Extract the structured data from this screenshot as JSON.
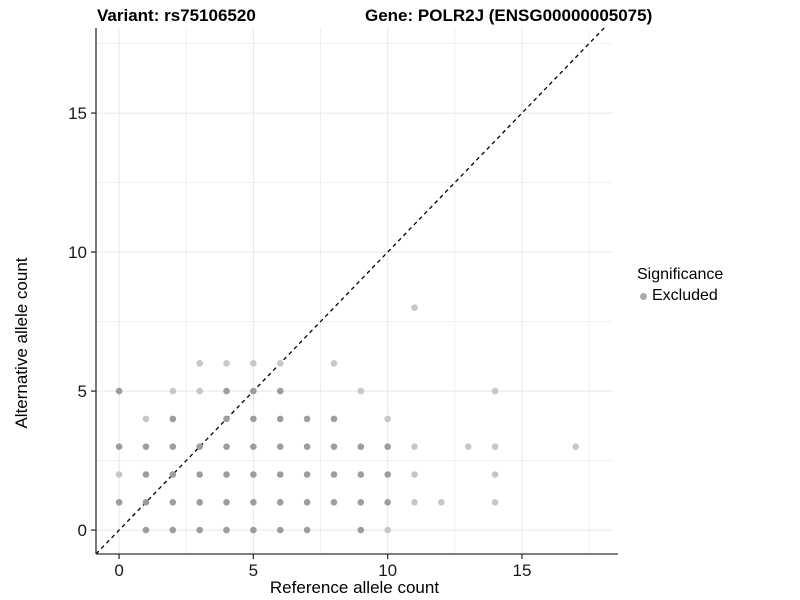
{
  "chart_data": {
    "type": "scatter",
    "title_left": "Variant: rs75106520",
    "title_right": "Gene: POLR2J (ENSG00000005075)",
    "xlabel": "Reference allele count",
    "ylabel": "Alternative allele count",
    "xlim": [
      -0.86,
      18.39
    ],
    "ylim": [
      -0.86,
      18.06
    ],
    "x_ticks": [
      0,
      5,
      10,
      15
    ],
    "y_ticks": [
      0,
      5,
      10,
      15
    ],
    "x_minor_ticks": [
      2.5,
      7.5,
      12.5,
      17.5
    ],
    "y_minor_ticks": [
      2.5,
      7.5,
      12.5,
      17.5
    ],
    "grid": "major+minor",
    "reference_line": "y = x, black dashed",
    "legend": {
      "title": "Significance",
      "position": "right",
      "entries": [
        {
          "label": "Excluded",
          "color": "#ababab"
        }
      ]
    },
    "series": [
      {
        "name": "Excluded",
        "marker": "circle",
        "points": [
          [
            1,
            0,
            "m"
          ],
          [
            2,
            0,
            "m"
          ],
          [
            3,
            0,
            "m"
          ],
          [
            4,
            0,
            "m"
          ],
          [
            5,
            0,
            "m"
          ],
          [
            6,
            0,
            "m"
          ],
          [
            7,
            0,
            "m"
          ],
          [
            9,
            0,
            "m"
          ],
          [
            10,
            0,
            "l"
          ],
          [
            0,
            1,
            "m"
          ],
          [
            1,
            1,
            "m"
          ],
          [
            2,
            1,
            "m"
          ],
          [
            3,
            1,
            "m"
          ],
          [
            4,
            1,
            "m"
          ],
          [
            5,
            1,
            "m"
          ],
          [
            6,
            1,
            "m"
          ],
          [
            7,
            1,
            "m"
          ],
          [
            8,
            1,
            "m"
          ],
          [
            9,
            1,
            "m"
          ],
          [
            10,
            1,
            "m"
          ],
          [
            11,
            1,
            "l"
          ],
          [
            12,
            1,
            "l"
          ],
          [
            14,
            1,
            "l"
          ],
          [
            0,
            2,
            "l"
          ],
          [
            1,
            2,
            "m"
          ],
          [
            2,
            2,
            "m"
          ],
          [
            3,
            2,
            "m"
          ],
          [
            4,
            2,
            "m"
          ],
          [
            5,
            2,
            "m"
          ],
          [
            6,
            2,
            "m"
          ],
          [
            7,
            2,
            "m"
          ],
          [
            8,
            2,
            "m"
          ],
          [
            9,
            2,
            "m"
          ],
          [
            10,
            2,
            "m"
          ],
          [
            11,
            2,
            "l"
          ],
          [
            14,
            2,
            "l"
          ],
          [
            0,
            3,
            "m"
          ],
          [
            1,
            3,
            "m"
          ],
          [
            2,
            3,
            "m"
          ],
          [
            3,
            3,
            "m"
          ],
          [
            4,
            3,
            "m"
          ],
          [
            5,
            3,
            "m"
          ],
          [
            6,
            3,
            "m"
          ],
          [
            7,
            3,
            "m"
          ],
          [
            8,
            3,
            "m"
          ],
          [
            9,
            3,
            "m"
          ],
          [
            10,
            3,
            "m"
          ],
          [
            11,
            3,
            "l"
          ],
          [
            13,
            3,
            "l"
          ],
          [
            14,
            3,
            "l"
          ],
          [
            17,
            3,
            "l"
          ],
          [
            1,
            4,
            "l"
          ],
          [
            2,
            4,
            "m"
          ],
          [
            4,
            4,
            "m"
          ],
          [
            5,
            4,
            "m"
          ],
          [
            6,
            4,
            "m"
          ],
          [
            7,
            4,
            "m"
          ],
          [
            8,
            4,
            "m"
          ],
          [
            10,
            4,
            "l"
          ],
          [
            0,
            5,
            "m"
          ],
          [
            2,
            5,
            "l"
          ],
          [
            3,
            5,
            "l"
          ],
          [
            4,
            5,
            "m"
          ],
          [
            5,
            5,
            "m"
          ],
          [
            6,
            5,
            "m"
          ],
          [
            9,
            5,
            "l"
          ],
          [
            14,
            5,
            "l"
          ],
          [
            3,
            6,
            "l"
          ],
          [
            4,
            6,
            "l"
          ],
          [
            5,
            6,
            "l"
          ],
          [
            6,
            6,
            "l"
          ],
          [
            8,
            6,
            "l"
          ],
          [
            11,
            8,
            "l"
          ]
        ]
      }
    ]
  },
  "colors": {
    "point_mid": "#9d9d9d",
    "point_light": "#c7c7c7",
    "grid_major": "#e7e7e7",
    "grid_minor": "#f1f1f1",
    "axis_line": "#333333",
    "tick_text": "#1a1a1a",
    "reference_line": "#000000"
  }
}
